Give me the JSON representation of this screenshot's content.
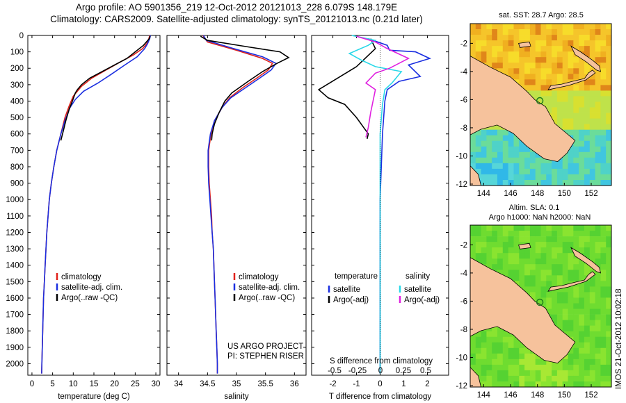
{
  "header": {
    "line1": "Argo profile: AO 5901356_219 12-Oct-2012 20121013_228 6.079S 148.179E",
    "line2": "Climatology: CARS2009. Satellite-adjusted climatology: synTS_20121013.nc (0.21d later)"
  },
  "colors": {
    "climatology": "#e0201a",
    "satellite": "#1a2ee0",
    "argo": "#000000",
    "salinity_sat": "#29d8e8",
    "salinity_argo": "#e020e0",
    "land": "#f6c29c"
  },
  "chart_data": [
    {
      "type": "line",
      "id": "temperature",
      "xlabel": "temperature (deg C)",
      "ylabel": "",
      "xlim": [
        -1,
        31
      ],
      "ylim": [
        2070,
        0
      ],
      "xticks": [
        0,
        5,
        10,
        15,
        20,
        25,
        30
      ],
      "yticks": [
        0,
        100,
        200,
        300,
        400,
        500,
        600,
        700,
        800,
        900,
        1000,
        1100,
        1200,
        1300,
        1400,
        1500,
        1600,
        1700,
        1800,
        1900,
        2000
      ],
      "legend": [
        "climatology",
        "satellite-adj. clim.",
        "Argo(..raw -QC)"
      ],
      "series": [
        {
          "name": "climatology",
          "color": "#e0201a",
          "points": [
            [
              28.5,
              0
            ],
            [
              28.3,
              20
            ],
            [
              27.8,
              50
            ],
            [
              26.8,
              80
            ],
            [
              24.5,
              120
            ],
            [
              21.5,
              160
            ],
            [
              18,
              210
            ],
            [
              14.5,
              260
            ],
            [
              12,
              310
            ],
            [
              10,
              370
            ],
            [
              9,
              430
            ],
            [
              8,
              500
            ],
            [
              7,
              600
            ],
            [
              6,
              700
            ],
            [
              5.3,
              800
            ],
            [
              4.7,
              900
            ],
            [
              4.2,
              1000
            ],
            [
              3.9,
              1100
            ],
            [
              3.6,
              1200
            ],
            [
              3.4,
              1300
            ],
            [
              3.2,
              1400
            ],
            [
              3,
              1500
            ],
            [
              2.8,
              1600
            ],
            [
              2.7,
              1700
            ],
            [
              2.6,
              1800
            ],
            [
              2.5,
              1900
            ],
            [
              2.4,
              2000
            ],
            [
              2.35,
              2060
            ]
          ]
        },
        {
          "name": "satellite-adj. clim.",
          "color": "#1a2ee0",
          "points": [
            [
              28.7,
              0
            ],
            [
              28.5,
              20
            ],
            [
              28,
              50
            ],
            [
              27.3,
              80
            ],
            [
              25.5,
              130
            ],
            [
              22.5,
              180
            ],
            [
              19,
              240
            ],
            [
              16,
              290
            ],
            [
              12.5,
              340
            ],
            [
              10.5,
              390
            ],
            [
              9.2,
              440
            ],
            [
              8,
              520
            ],
            [
              7,
              600
            ],
            [
              6,
              700
            ],
            [
              5.3,
              800
            ],
            [
              4.7,
              900
            ],
            [
              4.2,
              1000
            ],
            [
              3.9,
              1100
            ],
            [
              3.6,
              1200
            ],
            [
              3.4,
              1300
            ],
            [
              3.2,
              1400
            ],
            [
              3,
              1500
            ],
            [
              2.8,
              1600
            ],
            [
              2.7,
              1700
            ],
            [
              2.6,
              1800
            ],
            [
              2.5,
              1900
            ],
            [
              2.4,
              2000
            ],
            [
              2.35,
              2060
            ]
          ]
        },
        {
          "name": "Argo(..raw -QC)",
          "color": "#000000",
          "points": [
            [
              28.6,
              5
            ],
            [
              28.4,
              20
            ],
            [
              27,
              60
            ],
            [
              25,
              100
            ],
            [
              23,
              140
            ],
            [
              20,
              180
            ],
            [
              17,
              220
            ],
            [
              14,
              260
            ],
            [
              12,
              300
            ],
            [
              11,
              330
            ],
            [
              10.5,
              350
            ],
            [
              9.8,
              400
            ],
            [
              9,
              450
            ],
            [
              8.2,
              520
            ],
            [
              7.6,
              580
            ],
            [
              7,
              640
            ]
          ]
        }
      ]
    },
    {
      "type": "line",
      "id": "salinity",
      "xlabel": "salinity",
      "ylabel": "",
      "xlim": [
        33.8,
        36.2
      ],
      "ylim": [
        2070,
        0
      ],
      "xticks": [
        34,
        34.5,
        35,
        35.5,
        36
      ],
      "legend": [
        "climatology",
        "satellite-adj. clim.",
        "Argo(..raw -QC)"
      ],
      "annotation": [
        "US ARGO PROJECT",
        "PI: STEPHEN RISER"
      ],
      "series": [
        {
          "name": "climatology",
          "color": "#e0201a",
          "points": [
            [
              34.42,
              0
            ],
            [
              34.5,
              40
            ],
            [
              35,
              90
            ],
            [
              35.45,
              140
            ],
            [
              35.62,
              170
            ],
            [
              35.55,
              210
            ],
            [
              35.35,
              260
            ],
            [
              35.1,
              320
            ],
            [
              34.88,
              380
            ],
            [
              34.75,
              440
            ],
            [
              34.62,
              520
            ],
            [
              34.56,
              600
            ],
            [
              34.52,
              700
            ],
            [
              34.52,
              800
            ],
            [
              34.53,
              900
            ],
            [
              34.55,
              1000
            ],
            [
              34.57,
              1100
            ],
            [
              34.58,
              1200
            ],
            [
              34.6,
              1300
            ],
            [
              34.61,
              1400
            ],
            [
              34.62,
              1500
            ],
            [
              34.63,
              1600
            ],
            [
              34.64,
              1700
            ],
            [
              34.65,
              1800
            ],
            [
              34.66,
              1900
            ],
            [
              34.67,
              2000
            ],
            [
              34.67,
              2060
            ]
          ]
        },
        {
          "name": "satellite-adj. clim.",
          "color": "#1a2ee0",
          "points": [
            [
              34.43,
              0
            ],
            [
              34.48,
              30
            ],
            [
              34.95,
              80
            ],
            [
              35.45,
              130
            ],
            [
              35.68,
              170
            ],
            [
              35.6,
              210
            ],
            [
              35.4,
              260
            ],
            [
              35.15,
              320
            ],
            [
              34.9,
              380
            ],
            [
              34.75,
              440
            ],
            [
              34.62,
              520
            ],
            [
              34.55,
              600
            ],
            [
              34.51,
              700
            ],
            [
              34.51,
              800
            ],
            [
              34.52,
              900
            ],
            [
              34.54,
              1000
            ],
            [
              34.56,
              1100
            ],
            [
              34.58,
              1200
            ],
            [
              34.6,
              1300
            ],
            [
              34.61,
              1400
            ],
            [
              34.62,
              1500
            ],
            [
              34.63,
              1600
            ],
            [
              34.64,
              1700
            ],
            [
              34.65,
              1800
            ],
            [
              34.66,
              1900
            ],
            [
              34.67,
              2000
            ],
            [
              34.67,
              2060
            ]
          ]
        },
        {
          "name": "Argo(..raw -QC)",
          "color": "#000000",
          "points": [
            [
              34.38,
              5
            ],
            [
              34.5,
              30
            ],
            [
              35.2,
              70
            ],
            [
              35.75,
              100
            ],
            [
              35.9,
              135
            ],
            [
              35.7,
              170
            ],
            [
              35.45,
              220
            ],
            [
              35.2,
              280
            ],
            [
              35,
              330
            ],
            [
              34.92,
              350
            ],
            [
              34.8,
              400
            ],
            [
              34.7,
              470
            ],
            [
              34.62,
              540
            ],
            [
              34.58,
              600
            ],
            [
              34.57,
              640
            ]
          ]
        }
      ]
    },
    {
      "type": "line",
      "id": "difference",
      "xlabel": "T difference from climatology",
      "xlabel_top": "S difference from climatology",
      "xlim": [
        -2.9,
        2.9
      ],
      "ylim": [
        2070,
        0
      ],
      "xticks": [
        -2,
        -1,
        0,
        1,
        2
      ],
      "xticks_s": [
        "-0.5",
        "-0.25",
        "0",
        "0.25",
        "0.5"
      ],
      "legend_title_t": "temperature",
      "legend_title_s": "salinity",
      "legend": [
        "satellite",
        "Argo(-adj)",
        "satellite",
        "Argo(-adj)"
      ],
      "series": [
        {
          "name": "satellite",
          "group": "temperature",
          "color": "#1a2ee0",
          "points": [
            [
              -0.5,
              20
            ],
            [
              0.3,
              60
            ],
            [
              0.4,
              90
            ],
            [
              1.5,
              100
            ],
            [
              2.1,
              140
            ],
            [
              1.2,
              180
            ],
            [
              1.7,
              250
            ],
            [
              0.8,
              280
            ],
            [
              0.3,
              330
            ],
            [
              0.2,
              400
            ],
            [
              0.1,
              600
            ],
            [
              0.05,
              800
            ],
            [
              0,
              1000
            ],
            [
              0,
              1500
            ],
            [
              0,
              2060
            ]
          ]
        },
        {
          "name": "Argo(-adj)",
          "group": "temperature",
          "color": "#000000",
          "points": [
            [
              -0.4,
              20
            ],
            [
              -0.2,
              80
            ],
            [
              -1,
              190
            ],
            [
              -1.8,
              260
            ],
            [
              -2.6,
              330
            ],
            [
              -2.2,
              380
            ],
            [
              -1.5,
              420
            ],
            [
              -1,
              500
            ],
            [
              -0.7,
              560
            ],
            [
              -0.5,
              600
            ],
            [
              -0.55,
              630
            ]
          ]
        },
        {
          "name": "satellite",
          "group": "salinity",
          "color": "#29d8e8",
          "points": [
            [
              -1.2,
              0
            ],
            [
              -0.2,
              30
            ],
            [
              -0.5,
              60
            ],
            [
              -1.3,
              110
            ],
            [
              -0.8,
              150
            ],
            [
              -0.2,
              190
            ],
            [
              0.9,
              220
            ],
            [
              0.5,
              290
            ],
            [
              0.2,
              330
            ],
            [
              0.1,
              420
            ],
            [
              0,
              600
            ],
            [
              0,
              800
            ],
            [
              0,
              2060
            ]
          ]
        },
        {
          "name": "Argo(-adj)",
          "group": "salinity",
          "color": "#e020e0",
          "points": [
            [
              -1,
              5
            ],
            [
              -0.2,
              40
            ],
            [
              0.3,
              80
            ],
            [
              0.6,
              100
            ],
            [
              1.2,
              140
            ],
            [
              0.4,
              200
            ],
            [
              -0.2,
              230
            ],
            [
              -0.6,
              290
            ],
            [
              -0.2,
              330
            ],
            [
              -0.3,
              400
            ],
            [
              -0.4,
              470
            ],
            [
              -0.5,
              560
            ],
            [
              -0.6,
              620
            ]
          ]
        }
      ]
    },
    {
      "type": "heatmap",
      "id": "sst-map",
      "title": "sat. SST: 28.7  Argo: 28.5",
      "xlim": [
        143,
        153.5
      ],
      "ylim": [
        -12.1,
        -0.6
      ],
      "xticks": [
        144,
        146,
        148,
        150,
        152
      ],
      "yticks": [
        -2,
        -4,
        -6,
        -8,
        -10,
        -12
      ],
      "float_position": [
        148.179,
        -6.079
      ]
    },
    {
      "type": "heatmap",
      "id": "sla-map",
      "title": "Altim. SLA: 0.1",
      "subtitle": "Argo h1000: NaN h2000: NaN",
      "xlim": [
        143,
        153.5
      ],
      "ylim": [
        -12.1,
        -0.6
      ],
      "xticks": [
        144,
        146,
        148,
        150,
        152
      ],
      "yticks": [
        -2,
        -4,
        -6,
        -8,
        -10,
        -12
      ],
      "float_position": [
        148.179,
        -6.079
      ]
    }
  ],
  "footer": {
    "stamp": "IMOS 21-Oct-2012 10:02:18"
  }
}
